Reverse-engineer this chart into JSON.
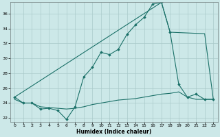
{
  "xlabel": "Humidex (Indice chaleur)",
  "background_color": "#cce8e8",
  "grid_color": "#aacaca",
  "line_color": "#1a7068",
  "xlim": [
    -0.5,
    23.5
  ],
  "ylim": [
    21.5,
    37.5
  ],
  "yticks": [
    22,
    24,
    26,
    28,
    30,
    32,
    34,
    36
  ],
  "xticks": [
    0,
    1,
    2,
    3,
    4,
    5,
    6,
    7,
    8,
    9,
    10,
    11,
    12,
    13,
    14,
    15,
    16,
    17,
    18,
    19,
    20,
    21,
    22,
    23
  ],
  "line1_x": [
    0,
    1,
    2,
    3,
    4,
    5,
    6,
    7,
    8,
    9,
    10,
    11,
    12,
    13,
    14,
    15,
    16,
    17,
    18,
    19,
    20,
    21,
    22,
    23
  ],
  "line1_y": [
    24.8,
    24.0,
    24.0,
    23.2,
    23.3,
    23.0,
    21.8,
    23.5,
    27.5,
    28.8,
    30.8,
    30.5,
    31.2,
    33.2,
    34.5,
    35.5,
    37.3,
    37.5,
    33.5,
    26.5,
    24.8,
    25.2,
    24.5,
    24.5
  ],
  "line2_x": [
    0,
    17
  ],
  "line2_y": [
    24.8,
    37.5
  ],
  "line3_x": [
    17,
    18,
    22,
    23
  ],
  "line3_y": [
    37.5,
    33.5,
    33.3,
    24.5
  ],
  "line4_x": [
    0,
    1,
    2,
    3,
    4,
    5,
    6,
    7,
    8,
    9,
    10,
    11,
    12,
    13,
    14,
    15,
    16,
    17,
    18,
    19,
    20,
    21,
    22,
    23
  ],
  "line4_y": [
    24.5,
    24.0,
    24.0,
    23.5,
    23.4,
    23.3,
    23.2,
    23.3,
    23.5,
    23.8,
    24.0,
    24.2,
    24.4,
    24.5,
    24.6,
    24.8,
    25.0,
    25.2,
    25.3,
    25.5,
    24.8,
    24.5,
    24.5,
    24.5
  ]
}
